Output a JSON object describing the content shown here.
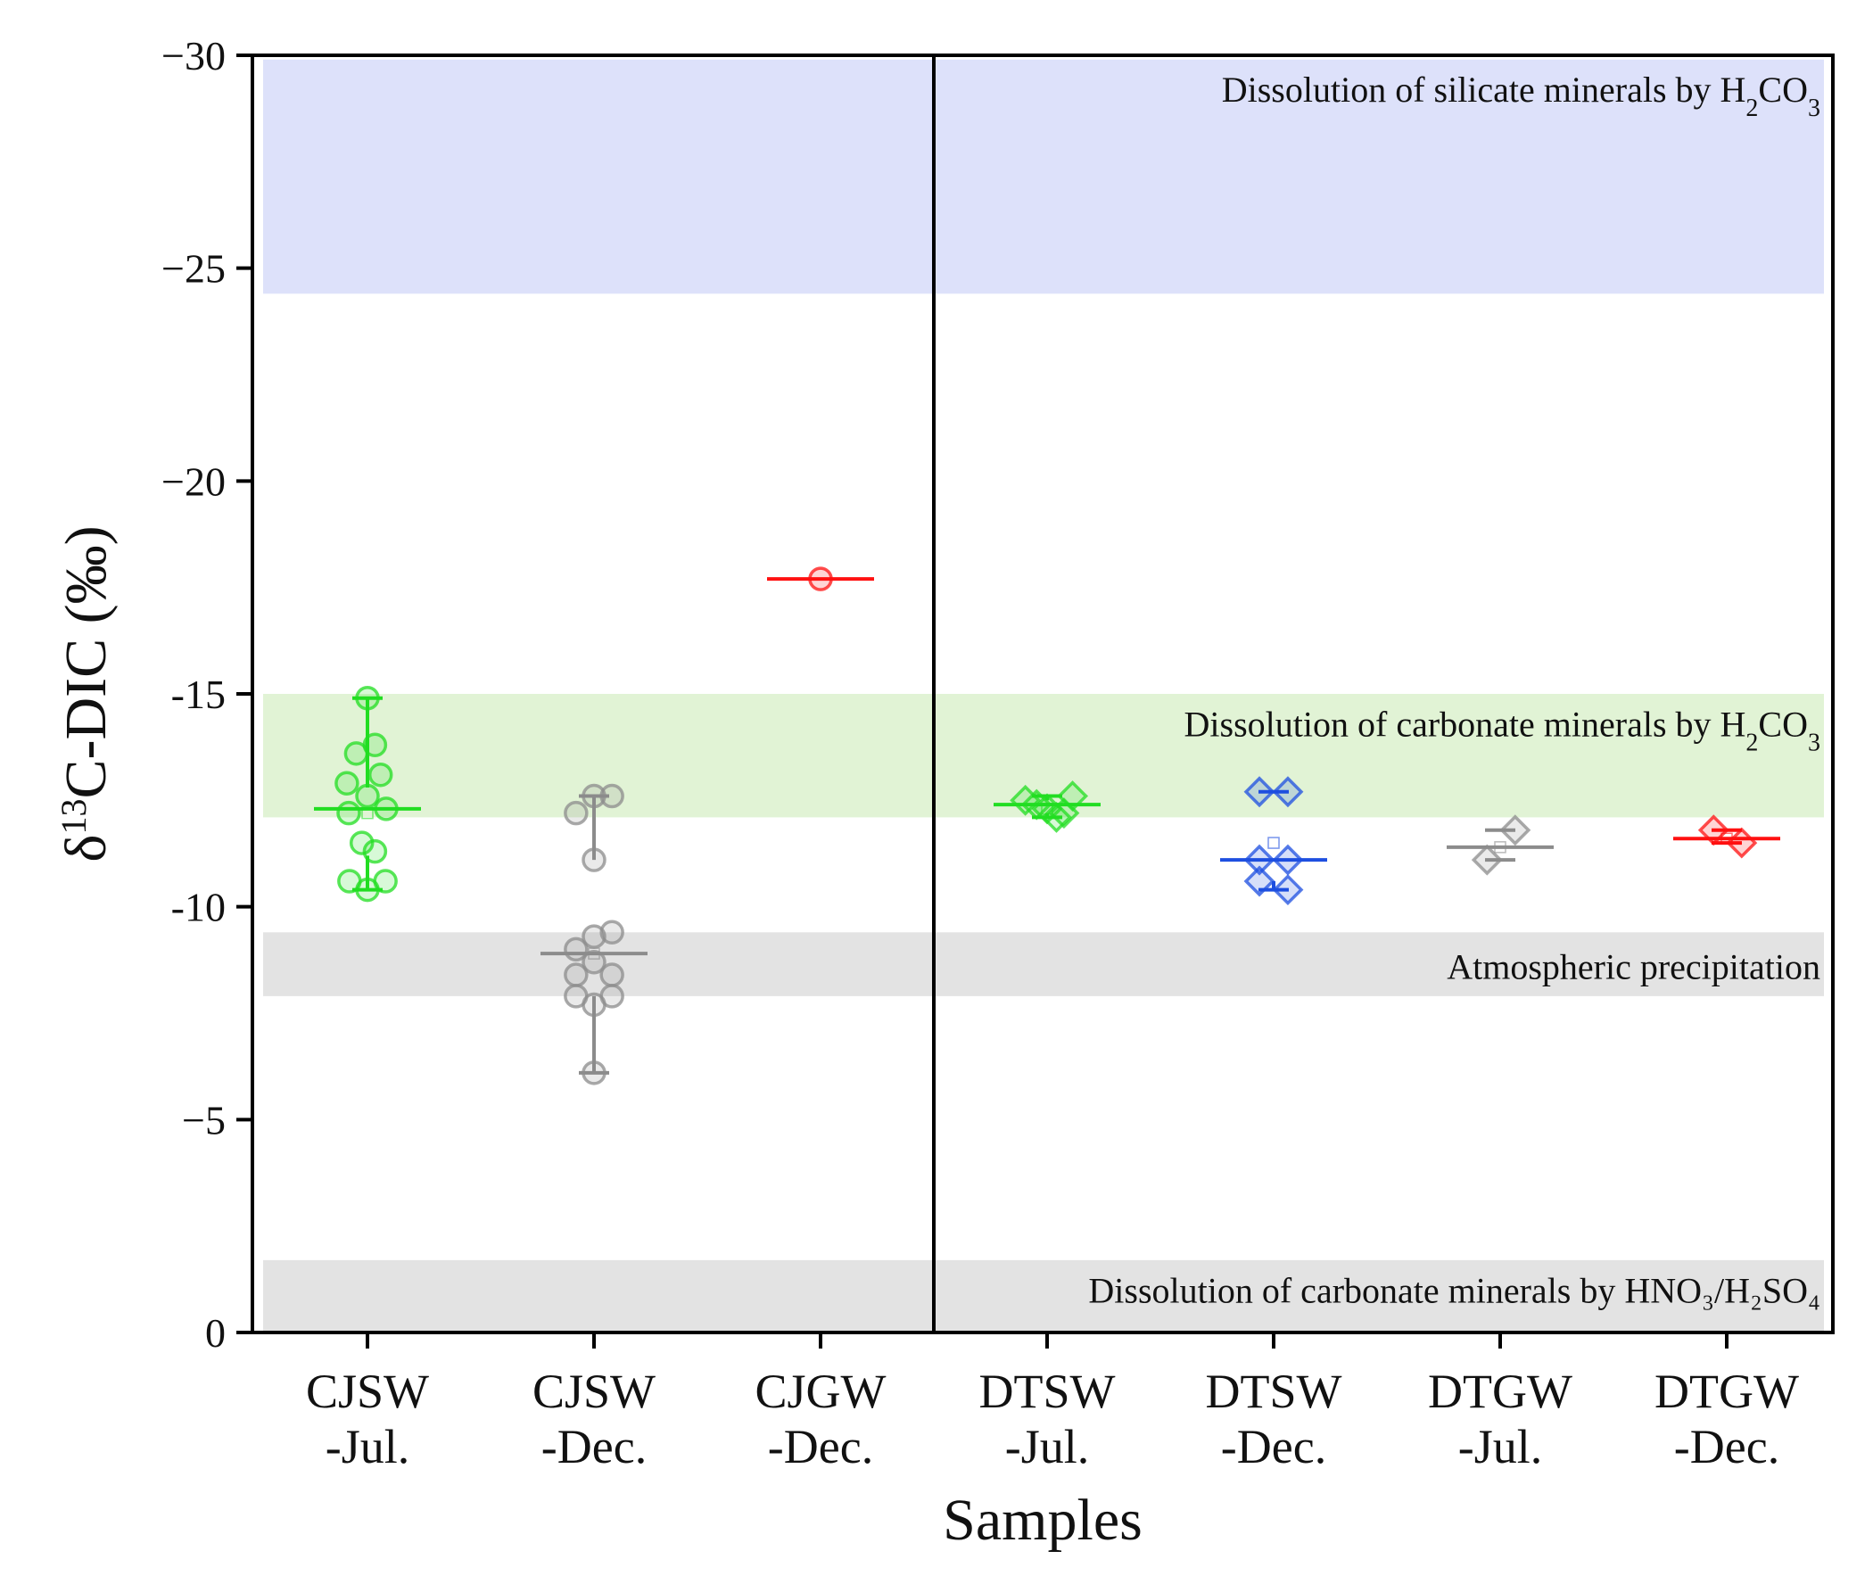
{
  "chart_data": {
    "type": "box",
    "title": "",
    "xlabel": "Samples",
    "ylabel": {
      "prefix": "δ",
      "sup": "13",
      "main": "C-DIC (‰)"
    },
    "ylim": [
      -30,
      0
    ],
    "yticks": [
      0,
      -5,
      -10,
      -15,
      -20,
      -25,
      -30
    ],
    "ytick_labels": [
      "0",
      "−5",
      "-10",
      "-15",
      "−20",
      "−25",
      "−30"
    ],
    "divider_after_category": 3,
    "bands": [
      {
        "name": "band-hno3-h2so4",
        "from": 0,
        "to": -1.7,
        "color": "#e3e3e3",
        "label_parts": [
          {
            "t": "Dissolution of carbonate minerals by HNO₃/H₂SO₄"
          }
        ],
        "label_y": -1.0
      },
      {
        "name": "band-atmospheric-precipitation",
        "from": -7.9,
        "to": -9.4,
        "color": "#e3e3e3",
        "label_parts": [
          {
            "t": "Atmospheric precipitation"
          }
        ],
        "label_y": -8.6
      },
      {
        "name": "band-carbonate-h2co3",
        "from": -12.1,
        "to": -15.0,
        "color": "#e1f3d5",
        "label_parts": [
          {
            "t": "Dissolution of carbonate minerals by H"
          },
          {
            "t": "2",
            "sub": true
          },
          {
            "t": "CO"
          },
          {
            "t": "3",
            "sub": true
          }
        ],
        "label_y": -14.3
      },
      {
        "name": "band-silicate-h2co3",
        "from": -24.4,
        "to": -29.9,
        "color": "#dde1fa",
        "label_parts": [
          {
            "t": "Dissolution of silicate minerals by H"
          },
          {
            "t": "2",
            "sub": true
          },
          {
            "t": "CO"
          },
          {
            "t": "3",
            "sub": true
          }
        ],
        "label_y": -29.2
      }
    ],
    "categories": [
      {
        "label": [
          "CJSW",
          "-Jul."
        ],
        "color": "#22dd22",
        "marker": "circle",
        "box": {
          "q1": -12.8,
          "median": -12.3,
          "q3": -11.2,
          "mean": -12.2,
          "whisker_low": -14.9,
          "whisker_high": -10.4
        },
        "points": [
          [
            0,
            -10.4
          ],
          [
            0.48,
            -10.6
          ],
          [
            -0.48,
            -10.6
          ],
          [
            0.2,
            -11.3
          ],
          [
            -0.15,
            -11.5
          ],
          [
            -0.5,
            -12.2
          ],
          [
            0.5,
            -12.3
          ],
          [
            0,
            -12.6
          ],
          [
            -0.55,
            -12.9
          ],
          [
            0.35,
            -13.1
          ],
          [
            -0.3,
            -13.6
          ],
          [
            0.2,
            -13.8
          ],
          [
            0,
            -14.9
          ]
        ]
      },
      {
        "label": [
          "CJSW",
          "-Dec."
        ],
        "color": "#8c8c8c",
        "marker": "circle",
        "box": {
          "q1": -11.1,
          "median": -8.9,
          "q3": -7.9,
          "mean": -8.9,
          "whisker_low": -12.6,
          "whisker_high": -6.1
        },
        "points": [
          [
            0,
            -6.1
          ],
          [
            0,
            -7.7
          ],
          [
            -0.48,
            -7.9
          ],
          [
            0.48,
            -7.9
          ],
          [
            -0.48,
            -8.4
          ],
          [
            0.48,
            -8.4
          ],
          [
            0,
            -8.7
          ],
          [
            -0.48,
            -9.0
          ],
          [
            0,
            -9.3
          ],
          [
            0.48,
            -9.4
          ],
          [
            0,
            -11.1
          ],
          [
            -0.48,
            -12.2
          ],
          [
            0.48,
            -12.6
          ],
          [
            0,
            -12.6
          ]
        ]
      },
      {
        "label": [
          "CJGW",
          "-Dec."
        ],
        "color": "#ff1111",
        "marker": "circle",
        "box": {
          "q1": -17.7,
          "median": -17.7,
          "q3": -17.7,
          "mean": -17.7,
          "whisker_low": -17.7,
          "whisker_high": -17.7
        },
        "points": [
          [
            0,
            -17.7
          ]
        ]
      },
      {
        "label": [
          "DTSW",
          "-Jul."
        ],
        "color": "#22dd22",
        "marker": "diamond",
        "box": {
          "q1": -12.5,
          "median": -12.4,
          "q3": -12.2,
          "mean": -12.3,
          "whisker_low": -12.6,
          "whisker_high": -12.1
        },
        "points": [
          [
            -0.58,
            -12.5
          ],
          [
            -0.28,
            -12.4
          ],
          [
            0,
            -12.3
          ],
          [
            0.25,
            -12.1
          ],
          [
            0.45,
            -12.2
          ],
          [
            0.68,
            -12.6
          ]
        ]
      },
      {
        "label": [
          "DTSW",
          "-Dec."
        ],
        "color": "#1e4fe0",
        "marker": "diamond",
        "box": {
          "q1": -12.7,
          "median": -11.1,
          "q3": -10.6,
          "mean": -11.5,
          "whisker_low": -12.7,
          "whisker_high": -10.4
        },
        "points": [
          [
            -0.38,
            -10.6
          ],
          [
            0.38,
            -10.4
          ],
          [
            -0.38,
            -11.1
          ],
          [
            0.38,
            -11.1
          ],
          [
            -0.38,
            -12.7
          ],
          [
            0.38,
            -12.7
          ]
        ]
      },
      {
        "label": [
          "DTGW",
          "-Jul."
        ],
        "color": "#8c8c8c",
        "marker": "diamond",
        "box": {
          "q1": -11.8,
          "median": -11.4,
          "q3": -11.1,
          "mean": -11.4,
          "whisker_low": -11.8,
          "whisker_high": -11.1
        },
        "points": [
          [
            -0.35,
            -11.1
          ],
          [
            0.4,
            -11.8
          ]
        ]
      },
      {
        "label": [
          "DTGW",
          "-Dec."
        ],
        "color": "#ff1111",
        "marker": "diamond",
        "box": {
          "q1": -11.8,
          "median": -11.6,
          "q3": -11.5,
          "mean": -11.6,
          "whisker_low": -11.8,
          "whisker_high": -11.5
        },
        "points": [
          [
            -0.35,
            -11.8
          ],
          [
            0.4,
            -11.5
          ]
        ]
      }
    ]
  }
}
